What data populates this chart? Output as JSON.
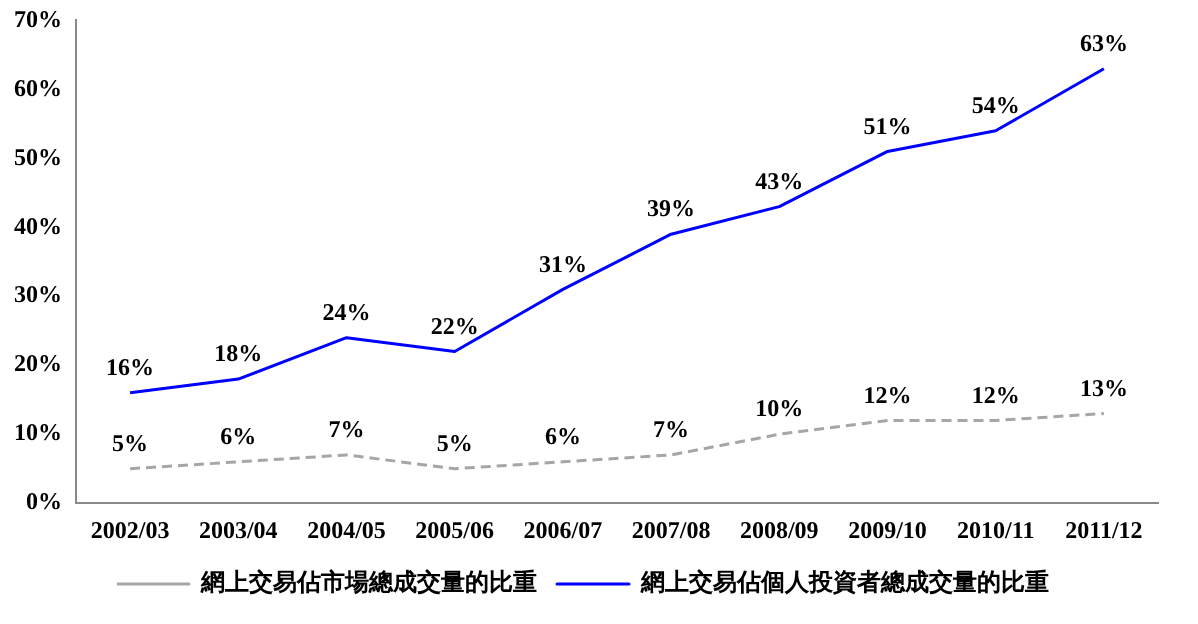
{
  "chart_data": {
    "type": "line",
    "categories": [
      "2002/03",
      "2003/04",
      "2004/05",
      "2005/06",
      "2006/07",
      "2007/08",
      "2008/09",
      "2009/10",
      "2010/11",
      "2011/12"
    ],
    "series": [
      {
        "name": "網上交易佔市場總成交量的比重",
        "color": "#a6a6a6",
        "line_style": "dashed",
        "values": [
          5,
          6,
          7,
          5,
          6,
          7,
          10,
          12,
          12,
          13
        ],
        "value_labels": [
          "5%",
          "6%",
          "7%",
          "5%",
          "6%",
          "7%",
          "10%",
          "12%",
          "12%",
          "13%"
        ]
      },
      {
        "name": "網上交易佔個人投資者總成交量的比重",
        "color": "#0000ff",
        "line_style": "solid",
        "values": [
          16,
          18,
          24,
          22,
          31,
          39,
          43,
          51,
          54,
          63
        ],
        "value_labels": [
          "16%",
          "18%",
          "24%",
          "22%",
          "31%",
          "39%",
          "43%",
          "51%",
          "54%",
          "63%"
        ]
      }
    ],
    "ylim": [
      0,
      70
    ],
    "yticks": [
      {
        "value": 0,
        "label": "0%"
      },
      {
        "value": 10,
        "label": "10%"
      },
      {
        "value": 20,
        "label": "20%"
      },
      {
        "value": 30,
        "label": "30%"
      },
      {
        "value": 40,
        "label": "40%"
      },
      {
        "value": 50,
        "label": "50%"
      },
      {
        "value": 60,
        "label": "60%"
      },
      {
        "value": 70,
        "label": "70%"
      }
    ],
    "grid": false,
    "legend": "bottom",
    "marker": "none"
  }
}
